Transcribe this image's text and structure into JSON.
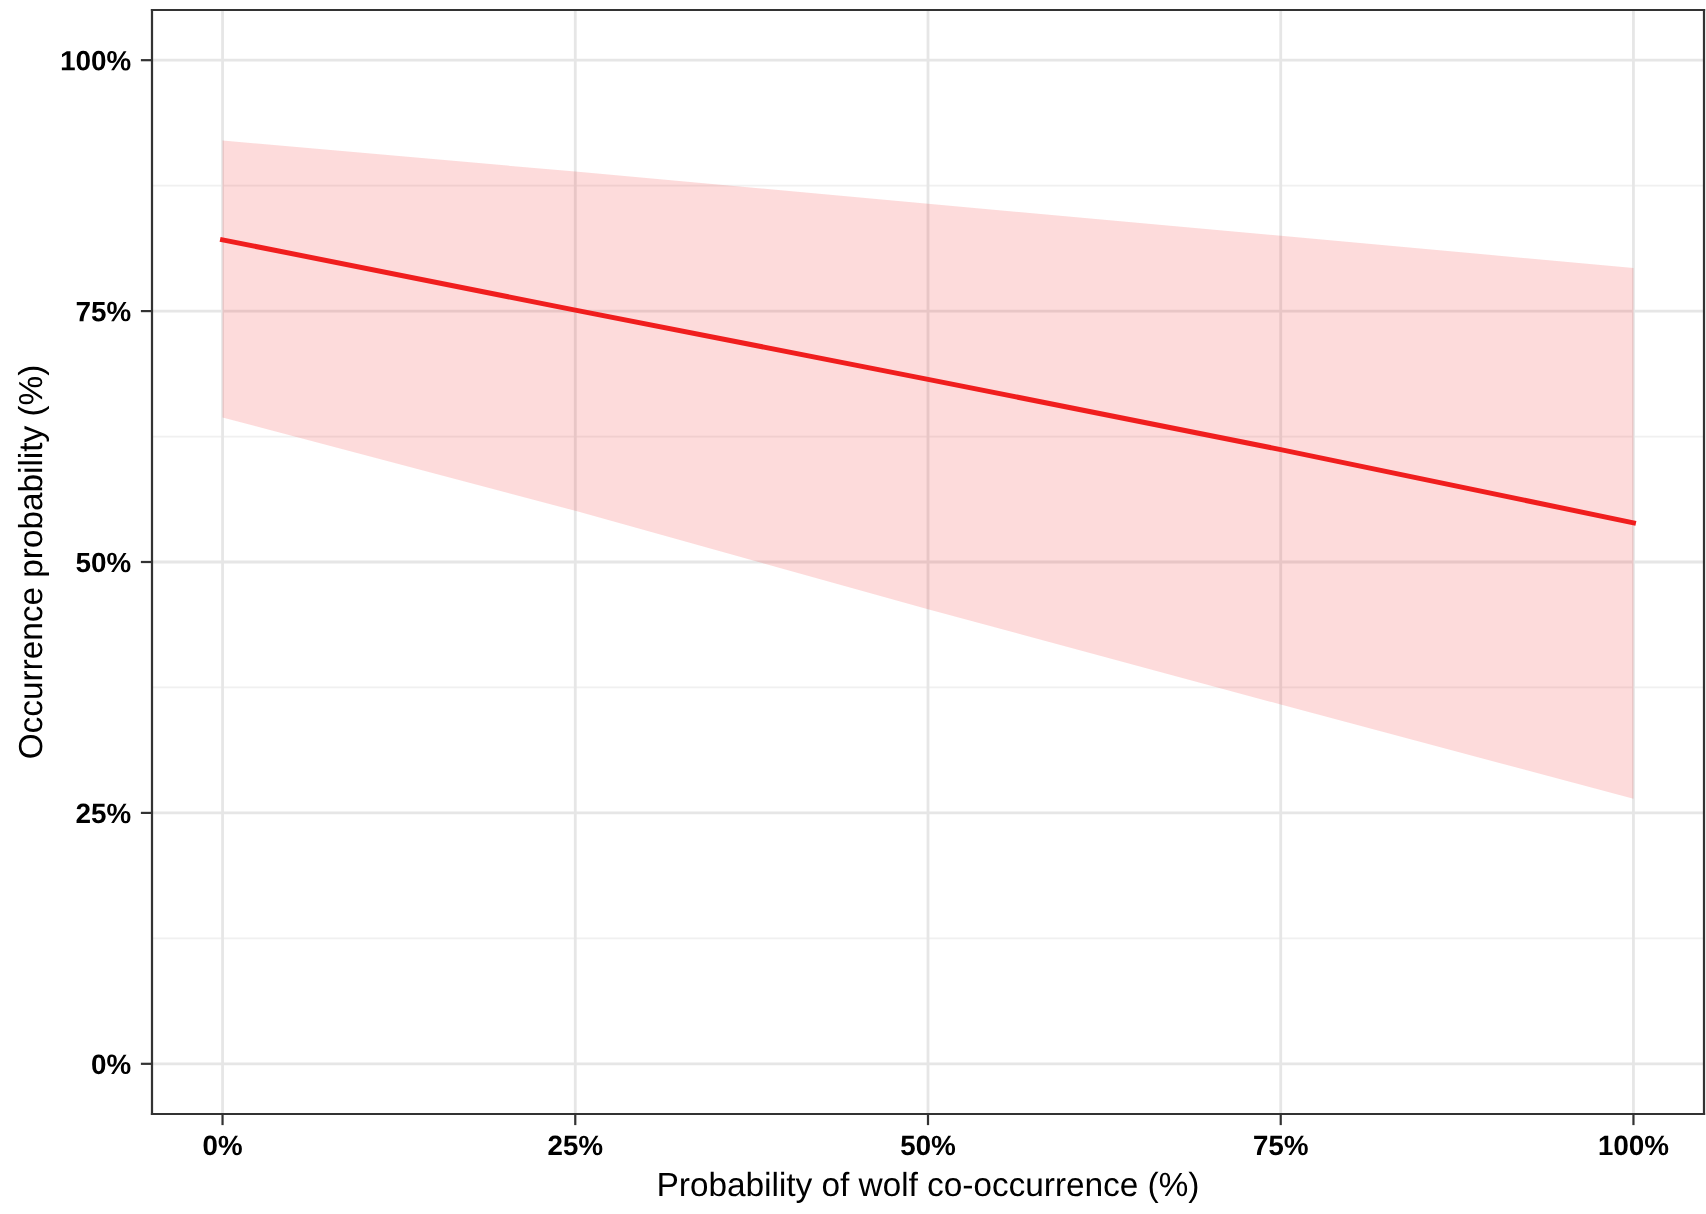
{
  "chart_data": {
    "type": "line",
    "xlabel": "Probability of wolf co-occurrence (%)",
    "ylabel": "Occurrence probability (%)",
    "x": [
      0,
      25,
      50,
      75,
      100
    ],
    "series": [
      {
        "color": "#f01e1e",
        "values": [
          82.1,
          75.1,
          68.2,
          61.2,
          53.9
        ],
        "lower": [
          64.4,
          55.1,
          45.3,
          35.8,
          26.4
        ],
        "upper": [
          92.0,
          88.9,
          85.7,
          82.5,
          79.3
        ]
      }
    ],
    "xlim": [
      -5,
      105
    ],
    "ylim": [
      -5,
      105
    ],
    "xticks": [
      {
        "value": 0,
        "label": "0%"
      },
      {
        "value": 25,
        "label": "25%"
      },
      {
        "value": 50,
        "label": "50%"
      },
      {
        "value": 75,
        "label": "75%"
      },
      {
        "value": 100,
        "label": "100%"
      }
    ],
    "yticks": [
      {
        "value": 0,
        "label": "0%"
      },
      {
        "value": 25,
        "label": "25%"
      },
      {
        "value": 50,
        "label": "50%"
      },
      {
        "value": 75,
        "label": "75%"
      },
      {
        "value": 100,
        "label": "100%"
      }
    ],
    "grid": true,
    "marker": "none",
    "line_style": "solid"
  }
}
